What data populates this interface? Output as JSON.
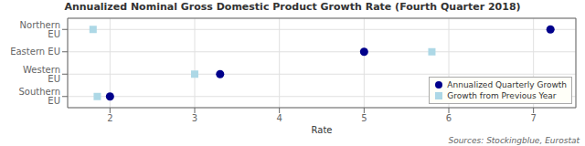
{
  "chart_data": {
    "type": "scatter",
    "title": "Annualized Nominal Gross Domestic Product Growth Rate (Fourth Quarter 2018)",
    "xlabel": "Rate",
    "annotation": "Sources: Stockingblue, Eurostat",
    "categories": [
      "Northern EU",
      "Eastern EU",
      "Western EU",
      "Southern EU"
    ],
    "series": [
      {
        "name": "Annualized Quarterly Growth",
        "color": "#00008B",
        "marker": "circle",
        "values": [
          7.2,
          5.0,
          3.3,
          2.0
        ]
      },
      {
        "name": "Growth from Previous Year",
        "color": "#ADD8E6",
        "marker": "square",
        "values": [
          1.8,
          5.8,
          3.0,
          1.85
        ]
      }
    ],
    "xlim": [
      1.5,
      7.5
    ],
    "xticks": [
      2,
      3,
      4,
      5,
      6,
      7
    ],
    "grid": true,
    "legend": "lower right"
  }
}
